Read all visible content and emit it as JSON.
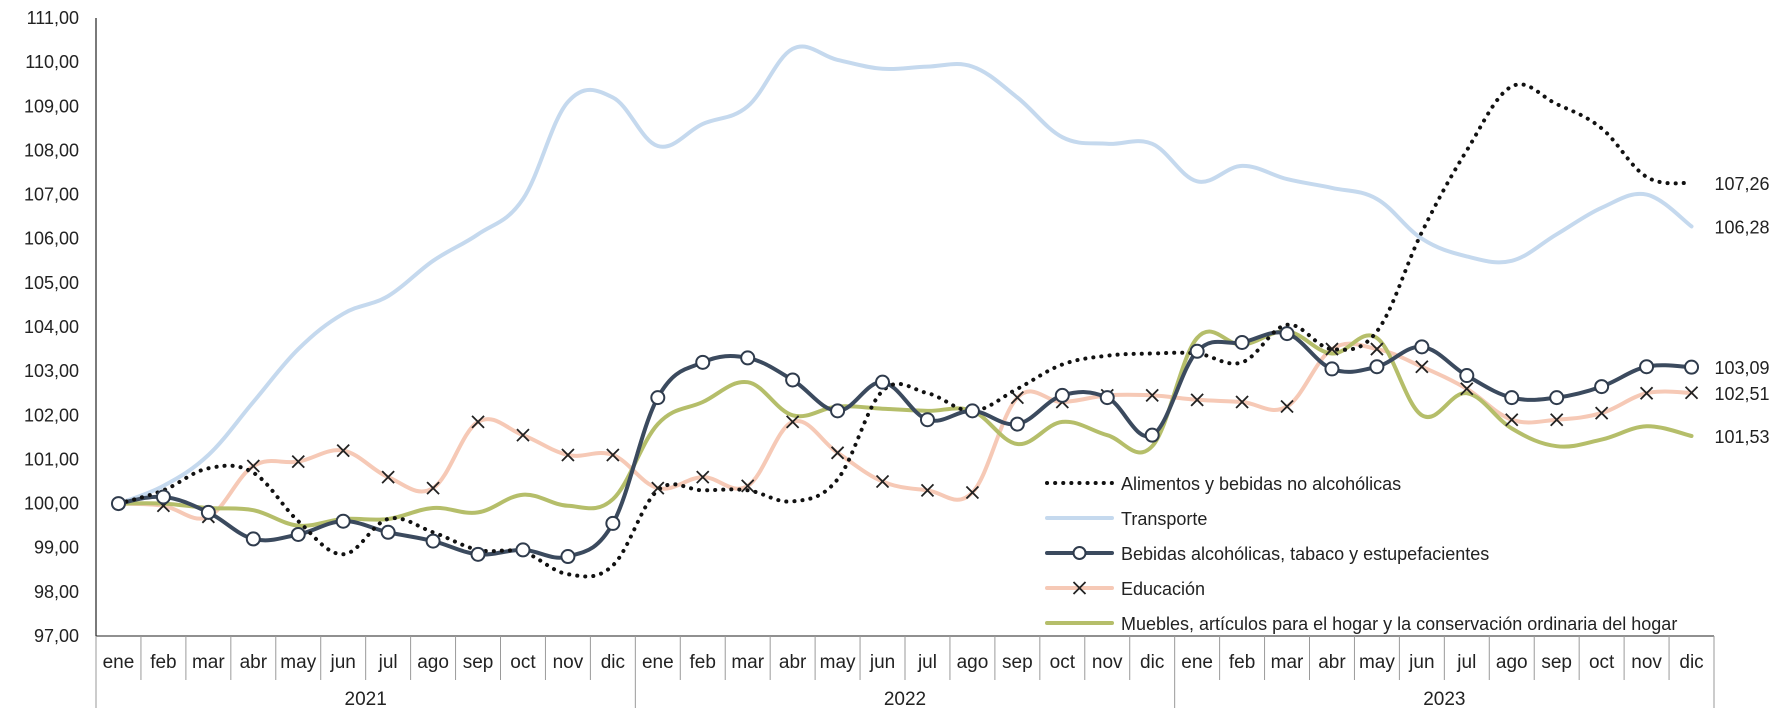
{
  "chart_data": {
    "type": "line",
    "categories": [
      "ene",
      "feb",
      "mar",
      "abr",
      "may",
      "jun",
      "jul",
      "ago",
      "sep",
      "oct",
      "nov",
      "dic",
      "ene",
      "feb",
      "mar",
      "abr",
      "may",
      "jun",
      "jul",
      "ago",
      "sep",
      "oct",
      "nov",
      "dic",
      "ene",
      "feb",
      "mar",
      "abr",
      "may",
      "jun",
      "jul",
      "ago",
      "sep",
      "oct",
      "nov",
      "dic"
    ],
    "years": [
      "2021",
      "2022",
      "2023"
    ],
    "ylim": [
      97,
      111
    ],
    "ytick_labels": [
      "97,00",
      "98,00",
      "99,00",
      "100,00",
      "101,00",
      "102,00",
      "103,00",
      "104,00",
      "105,00",
      "106,00",
      "107,00",
      "108,00",
      "109,00",
      "110,00",
      "111,00"
    ],
    "series": [
      {
        "name": "Alimentos y bebidas no alcohólicas",
        "color": "#111111",
        "style": "dotted",
        "marker": "none",
        "end_label": "107,26",
        "values": [
          100.0,
          100.3,
          100.8,
          100.7,
          99.6,
          98.85,
          99.65,
          99.35,
          98.95,
          98.9,
          98.4,
          98.6,
          100.3,
          100.3,
          100.3,
          100.05,
          100.55,
          102.55,
          102.5,
          102.1,
          102.6,
          103.15,
          103.35,
          103.4,
          103.4,
          103.2,
          104.05,
          103.5,
          103.9,
          106.15,
          108.0,
          109.45,
          109.05,
          108.5,
          107.4,
          107.26
        ]
      },
      {
        "name": "Transporte",
        "color": "#c5d9ee",
        "style": "solid",
        "marker": "none",
        "end_label": "106,28",
        "values": [
          100.0,
          100.4,
          101.1,
          102.3,
          103.5,
          104.3,
          104.7,
          105.5,
          106.1,
          106.9,
          109.1,
          109.2,
          108.1,
          108.6,
          109.0,
          110.3,
          110.05,
          109.85,
          109.9,
          109.9,
          109.2,
          108.3,
          108.15,
          108.15,
          107.3,
          107.65,
          107.35,
          107.15,
          106.9,
          106.0,
          105.6,
          105.5,
          106.1,
          106.7,
          107.0,
          106.28
        ]
      },
      {
        "name": "Bebidas alcohólicas, tabaco y estupefacientes",
        "color": "#3b4a5e",
        "style": "solid",
        "marker": "circle",
        "end_label": "103,09",
        "values": [
          100.0,
          100.15,
          99.8,
          99.2,
          99.3,
          99.6,
          99.35,
          99.15,
          98.85,
          98.95,
          98.8,
          99.55,
          102.4,
          103.2,
          103.3,
          102.8,
          102.1,
          102.75,
          101.9,
          102.1,
          101.8,
          102.45,
          102.4,
          101.55,
          103.45,
          103.65,
          103.85,
          103.05,
          103.1,
          103.55,
          102.9,
          102.4,
          102.4,
          102.65,
          103.1,
          103.09
        ]
      },
      {
        "name": "Educación",
        "color": "#f6c9b6",
        "style": "solid",
        "marker": "x",
        "end_label": "102,51",
        "values": [
          100.0,
          99.95,
          99.7,
          100.85,
          100.95,
          101.2,
          100.6,
          100.35,
          101.85,
          101.55,
          101.1,
          101.1,
          100.35,
          100.6,
          100.4,
          101.85,
          101.15,
          100.5,
          100.3,
          100.25,
          102.4,
          102.3,
          102.45,
          102.45,
          102.35,
          102.3,
          102.2,
          103.5,
          103.5,
          103.1,
          102.6,
          101.9,
          101.9,
          102.05,
          102.5,
          102.51
        ]
      },
      {
        "name": "Muebles, artículos para el hogar y la conservación ordinaria del hogar",
        "color": "#b5be6a",
        "style": "solid",
        "marker": "none",
        "end_label": "101,53",
        "values": [
          100.0,
          100.0,
          99.9,
          99.85,
          99.5,
          99.65,
          99.65,
          99.9,
          99.8,
          100.2,
          99.95,
          100.1,
          101.8,
          102.3,
          102.75,
          102.0,
          102.2,
          102.15,
          102.1,
          102.1,
          101.35,
          101.85,
          101.55,
          101.3,
          103.75,
          103.6,
          103.9,
          103.4,
          103.75,
          102.0,
          102.5,
          101.7,
          101.3,
          101.45,
          101.75,
          101.53
        ]
      }
    ]
  }
}
